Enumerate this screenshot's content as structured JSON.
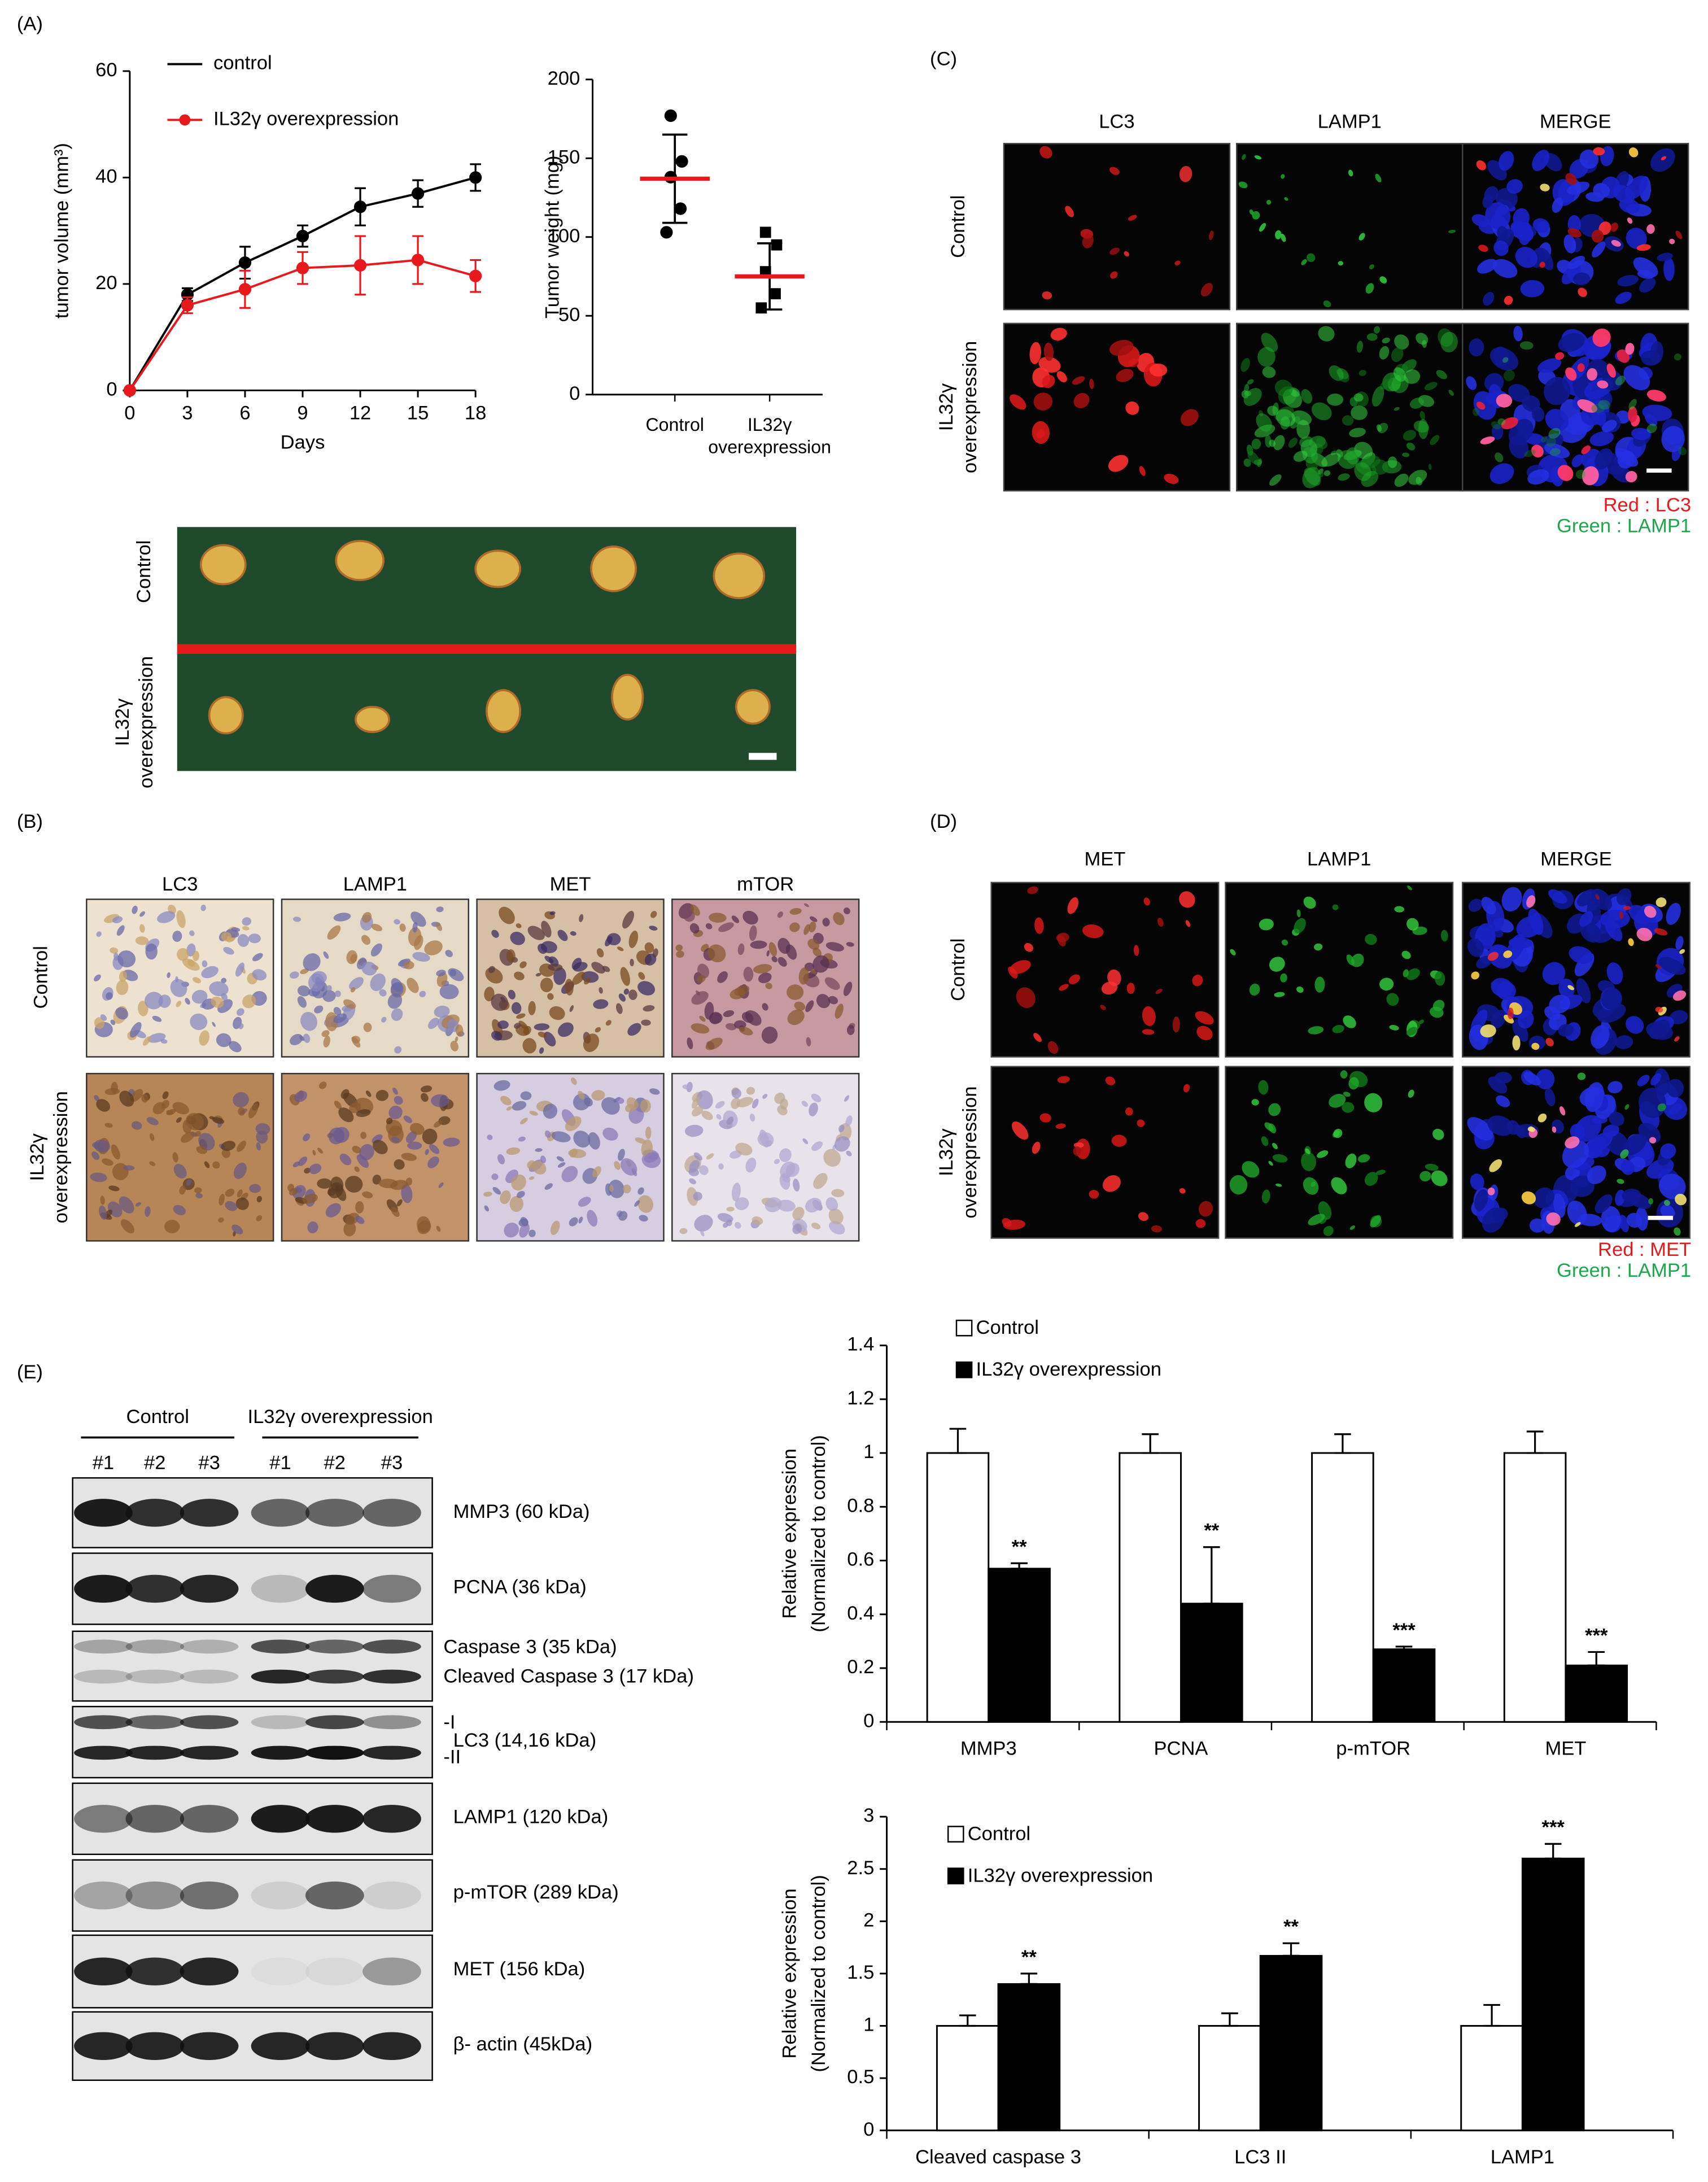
{
  "panel_labels": [
    "(A)",
    "(B)",
    "(C)",
    "(D)",
    "(E)"
  ],
  "tumor_photo": {
    "rows": [
      [
        "Control"
      ],
      [
        "IL32γ",
        "overexpression"
      ]
    ]
  },
  "ihc": {
    "columns": [
      "LC3",
      "LAMP1",
      "MET",
      "mTOR"
    ],
    "rows": [
      [
        "Control"
      ],
      [
        "IL32γ",
        "overexpression"
      ]
    ]
  },
  "if_lc3": {
    "columns": [
      "LC3",
      "LAMP1",
      "MERGE"
    ],
    "rows": [
      [
        "Control"
      ],
      [
        "IL32γ",
        "overexpression"
      ]
    ],
    "legend": [
      "Red : LC3",
      "Green : LAMP1"
    ]
  },
  "if_met": {
    "columns": [
      "MET",
      "LAMP1",
      "MERGE"
    ],
    "rows": [
      [
        "Control"
      ],
      [
        "IL32γ",
        "overexpression"
      ]
    ],
    "legend": [
      "Red : MET",
      "Green : LAMP1"
    ]
  },
  "western_blot": {
    "groups": [
      "Control",
      "IL32γ overexpression"
    ],
    "lanes": [
      "#1",
      "#2",
      "#3",
      "#1",
      "#2",
      "#3"
    ],
    "bands": [
      [
        "MMP3 (60 kDa)"
      ],
      [
        "PCNA (36 kDa)"
      ],
      [
        "Caspase 3 (35 kDa)",
        "Cleaved Caspase 3 (17 kDa)"
      ],
      [
        "LC3 (14,16 kDa)"
      ],
      [
        "LAMP1 (120 kDa)"
      ],
      [
        "p-mTOR (289 kDa)"
      ],
      [
        "MET (156 kDa)"
      ],
      [
        "β- actin (45kDa)"
      ]
    ],
    "lc3_forms": [
      "-I",
      "-II"
    ]
  },
  "chart_data": [
    {
      "type": "line",
      "xlabel": "Days",
      "ylabel": "tumor volume (mm³)",
      "x": [
        0,
        3,
        6,
        9,
        12,
        15,
        18
      ],
      "xlim": [
        0,
        18
      ],
      "xticks": [
        0,
        3,
        6,
        9,
        12,
        15,
        18
      ],
      "ylim": [
        0,
        60
      ],
      "yticks": [
        0,
        20,
        40,
        60
      ],
      "legend": "upper left",
      "series": [
        {
          "name": "control",
          "color": "#000000",
          "values": [
            0,
            18,
            24,
            29,
            34.5,
            37,
            40
          ],
          "errors": [
            0,
            1.2,
            3,
            2,
            3.5,
            2.5,
            2.5
          ]
        },
        {
          "name": "IL32γ overexpression",
          "color": "#e8191c",
          "values": [
            0,
            16,
            19,
            23,
            23.5,
            24.5,
            21.5
          ],
          "errors": [
            0,
            1.5,
            3.5,
            3,
            5.5,
            4.5,
            3
          ]
        }
      ]
    },
    {
      "type": "scatter",
      "ylabel": "Tumor weight (mg)",
      "categories": [
        "Control",
        "IL32γ overexpression"
      ],
      "ylim": [
        0,
        200
      ],
      "yticks": [
        0,
        50,
        100,
        150,
        200
      ],
      "markers": [
        "circle",
        "square"
      ],
      "color": "#000000",
      "mean_color": "#e8191c",
      "values": [
        [
          177,
          148,
          138,
          118,
          103
        ],
        [
          103,
          95,
          78,
          64,
          55
        ]
      ],
      "means": [
        137,
        75
      ],
      "sd": [
        28,
        21
      ]
    },
    {
      "type": "bar",
      "ylabel": [
        "Relative expression",
        "(Normalized to control)"
      ],
      "categories": [
        "MMP3",
        "PCNA",
        "p-mTOR",
        "MET"
      ],
      "ylim": [
        0,
        1.4
      ],
      "yticks": [
        0,
        0.2,
        0.4,
        0.6,
        0.8,
        1,
        1.2,
        1.4
      ],
      "legend": "upper left",
      "significance": [
        "**",
        "**",
        "***",
        "***"
      ],
      "series": [
        {
          "name": "Control",
          "color": "#ffffff",
          "values": [
            1,
            1,
            1,
            1
          ],
          "errors": [
            0.09,
            0.07,
            0.07,
            0.08
          ]
        },
        {
          "name": "IL32γ overexpression",
          "color": "#000000",
          "values": [
            0.57,
            0.44,
            0.27,
            0.21
          ],
          "errors": [
            0.02,
            0.21,
            0.01,
            0.05
          ]
        }
      ]
    },
    {
      "type": "bar",
      "ylabel": [
        "Relative expression",
        "(Normalized to control)"
      ],
      "categories": [
        "Cleaved caspase 3",
        "LC3 II",
        "LAMP1"
      ],
      "ylim": [
        0,
        3
      ],
      "yticks": [
        0,
        0.5,
        1,
        1.5,
        2,
        2.5,
        3
      ],
      "legend": "upper left",
      "significance": [
        "**",
        "**",
        "***"
      ],
      "series": [
        {
          "name": "Control",
          "color": "#ffffff",
          "values": [
            1,
            1,
            1
          ],
          "errors": [
            0.1,
            0.12,
            0.2
          ]
        },
        {
          "name": "IL32γ overexpression",
          "color": "#000000",
          "values": [
            1.4,
            1.67,
            2.6
          ],
          "errors": [
            0.1,
            0.12,
            0.14
          ]
        }
      ]
    }
  ]
}
